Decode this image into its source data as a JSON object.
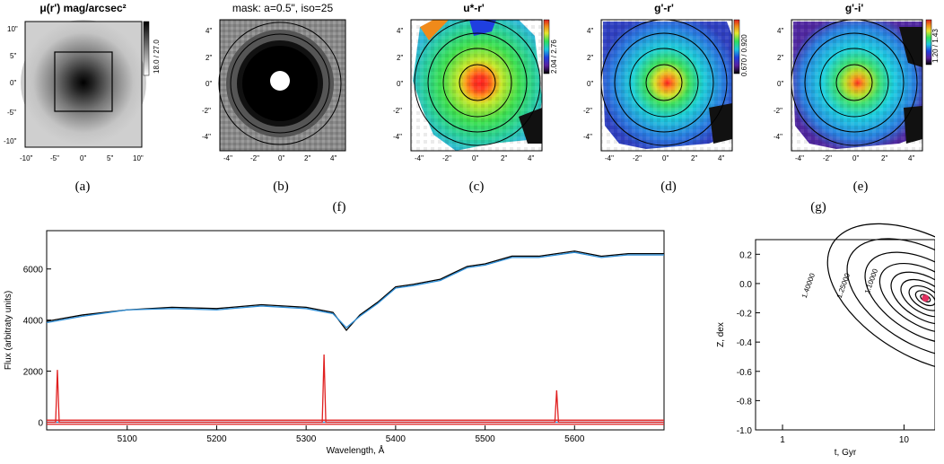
{
  "panels": {
    "a": {
      "title": "μ(r') mag/arcsec²",
      "label": "(a)",
      "cbar": "18.0 / 27.0",
      "yticks": [
        "10\"",
        "5\"",
        "0\"",
        "-5\"",
        "-10\""
      ],
      "xticks": [
        "-10\"",
        "-5\"",
        "0\"",
        "5\"",
        "10\""
      ]
    },
    "b": {
      "title": "mask: a=0.5\", iso=25",
      "label": "(b)",
      "yticks": [
        "4\"",
        "2\"",
        "0\"",
        "-2\"",
        "-4\""
      ],
      "xticks": [
        "-4\"",
        "-2\"",
        "0\"",
        "2\"",
        "4\""
      ]
    },
    "c": {
      "title": "u*-r'",
      "label": "(c)",
      "cbar": "2.04 / 2.76",
      "yticks": [
        "4\"",
        "2\"",
        "0\"",
        "-2\"",
        "-4\""
      ],
      "xticks": [
        "-4\"",
        "-2\"",
        "0\"",
        "2\"",
        "4\""
      ]
    },
    "d": {
      "title": "g'-r'",
      "label": "(d)",
      "cbar": "0.670 / 0.920",
      "yticks": [
        "4\"",
        "2\"",
        "0\"",
        "-2\"",
        "-4\""
      ],
      "xticks": [
        "-4\"",
        "-2\"",
        "0\"",
        "2\"",
        "4\""
      ]
    },
    "e": {
      "title": "g'-i'",
      "label": "(e)",
      "cbar": "1.20 / 1.43",
      "yticks": [
        "4\"",
        "2\"",
        "0\"",
        "-2\"",
        "-4\""
      ],
      "xticks": [
        "-4\"",
        "-2\"",
        "0\"",
        "2\"",
        "4\""
      ]
    }
  },
  "label_f": "(f)",
  "label_g": "(g)",
  "chart_data": [
    {
      "type": "line",
      "xlabel": "Wavelength, Å",
      "ylabel": "Flux (arbitraty units)",
      "xlim": [
        5010,
        5700
      ],
      "ylim": [
        -300,
        7500
      ],
      "xticks": [
        5100,
        5200,
        5300,
        5400,
        5500,
        5600
      ],
      "yticks": [
        0,
        2000,
        4000,
        6000
      ],
      "series": [
        {
          "color": "#000000",
          "x": [
            5010,
            5050,
            5100,
            5150,
            5200,
            5250,
            5300,
            5330,
            5345,
            5360,
            5380,
            5400,
            5420,
            5450,
            5480,
            5500,
            5530,
            5560,
            5600,
            5630,
            5660,
            5700
          ],
          "y": [
            3950,
            4200,
            4400,
            4500,
            4450,
            4600,
            4500,
            4300,
            3600,
            4200,
            4700,
            5300,
            5400,
            5600,
            6100,
            6200,
            6500,
            6500,
            6700,
            6500,
            6600,
            6600
          ]
        },
        {
          "color": "#2e8fd8",
          "x": [
            5010,
            5050,
            5100,
            5150,
            5200,
            5250,
            5300,
            5330,
            5345,
            5360,
            5380,
            5400,
            5420,
            5450,
            5480,
            5500,
            5530,
            5560,
            5600,
            5630,
            5660,
            5700
          ],
          "y": [
            3900,
            4150,
            4400,
            4450,
            4400,
            4550,
            4450,
            4250,
            3700,
            4150,
            4650,
            5250,
            5350,
            5550,
            6050,
            6150,
            6450,
            6450,
            6650,
            6450,
            6550,
            6550
          ]
        },
        {
          "color": "#2e8fd8",
          "x": [
            5010,
            5700
          ],
          "y": [
            0,
            0
          ]
        },
        {
          "color": "#e02020",
          "x": [
            5010,
            5020,
            5022,
            5024,
            5030,
            5318,
            5320,
            5322,
            5330,
            5578,
            5580,
            5582,
            5590,
            5700
          ],
          "y": [
            0,
            0,
            2050,
            0,
            0,
            0,
            2650,
            0,
            0,
            0,
            1250,
            0,
            0,
            0
          ]
        },
        {
          "color": "#e02020",
          "x": [
            5010,
            5700
          ],
          "y": [
            -80,
            -80
          ]
        },
        {
          "color": "#e02020",
          "x": [
            5010,
            5700
          ],
          "y": [
            80,
            80
          ]
        }
      ]
    },
    {
      "type": "contour",
      "xlabel": "t, Gyr",
      "ylabel": "Z, dex",
      "xscale": "log",
      "xlim": [
        0.6,
        18
      ],
      "ylim": [
        -1.0,
        0.3
      ],
      "xticks": [
        1,
        10
      ],
      "yticks": [
        0.2,
        0.0,
        -0.2,
        -0.4,
        -0.6,
        -0.8,
        -1.0
      ],
      "contour_labels": [
        "1.40000",
        "1.25000",
        "1.10000"
      ],
      "minimum": {
        "x": 15,
        "y": -0.1
      }
    }
  ]
}
